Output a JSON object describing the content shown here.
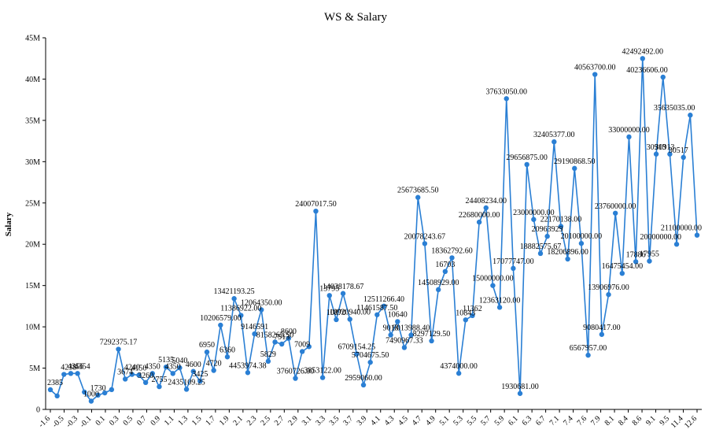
{
  "chart_data": {
    "type": "line",
    "title": "WS & Salary",
    "xlabel": "",
    "ylabel": "Salary",
    "ylim": [
      0,
      45000000
    ],
    "y_ticks": [
      "0",
      "5M",
      "10M",
      "15M",
      "20M",
      "25M",
      "30M",
      "35M",
      "40M",
      "45M"
    ],
    "grid": false,
    "legend": "none",
    "line_color": "#2A7FD4",
    "marker_color": "#2A7FD4",
    "x_ticks": [
      "-1.6",
      "-0.5",
      "-0.3",
      "-0.1",
      "0.1",
      "0.3",
      "0.5",
      "0.7",
      "0.9",
      "1.1",
      "1.3",
      "1.5",
      "1.7",
      "1.9",
      "2.1",
      "2.3",
      "2.5",
      "2.7",
      "2.9",
      "3.1",
      "3.3",
      "3.5",
      "3.7",
      "3.9",
      "4.1",
      "4.3",
      "4.5",
      "4.7",
      "4.9",
      "5.1",
      "5.3",
      "5.5",
      "5.7",
      "5.9",
      "6.1",
      "6.3",
      "6.7",
      "7.1",
      "7.4",
      "7.6",
      "7.9",
      "8.1",
      "8.4",
      "8.6",
      "9.1",
      "9.5",
      "11.4",
      "12.6"
    ],
    "x": [
      "-1.6",
      "-0.9",
      "-0.5",
      "-0.4",
      "-0.3",
      "-0.2",
      "-0.1",
      "0.0",
      "0.1",
      "0.2",
      "0.3",
      "0.4",
      "0.5",
      "0.6",
      "0.7",
      "0.8",
      "0.9",
      "1.0",
      "1.1",
      "1.2",
      "1.3",
      "1.4",
      "1.5",
      "1.6",
      "1.7",
      "1.8",
      "1.9",
      "2.0",
      "2.1",
      "2.2",
      "2.3",
      "2.4",
      "2.5",
      "2.6",
      "2.7",
      "2.8",
      "2.9",
      "3.0",
      "3.1",
      "3.2",
      "3.3",
      "3.4",
      "3.5",
      "3.6",
      "3.7",
      "3.8",
      "3.9",
      "4.0",
      "4.1",
      "4.2",
      "4.3",
      "4.4",
      "4.5",
      "4.6",
      "4.7",
      "4.8",
      "4.9",
      "5.0",
      "5.1",
      "5.2",
      "5.3",
      "5.4",
      "5.5",
      "5.6",
      "5.7",
      "5.8",
      "5.9",
      "6.0",
      "6.1",
      "6.2",
      "6.3",
      "6.5",
      "6.7",
      "6.9",
      "7.1",
      "7.2",
      "7.4",
      "7.5",
      "7.6",
      "7.7",
      "7.9",
      "8.0",
      "8.1",
      "8.2",
      "8.4",
      "8.5",
      "8.6",
      "8.9",
      "9.1",
      "9.3",
      "9.5",
      "10.0",
      "11.4",
      "12.0",
      "12.6",
      "13.0"
    ],
    "values": [
      2385,
      1635,
      4238,
      4356,
      4354,
      2100,
      1000,
      1730,
      2000,
      2400,
      7292,
      3674,
      4240,
      4150,
      3260,
      4350,
      2755,
      5135,
      4350,
      5040,
      2435,
      4600,
      3425,
      6950,
      4720,
      10206,
      6360,
      13421,
      11386,
      4453,
      9146,
      12064,
      5829,
      8158,
      7913,
      8600,
      3760,
      7009,
      7600,
      24007,
      3853,
      13795,
      10870,
      14038,
      10920,
      6709,
      2959,
      5704,
      11461,
      12511,
      9013,
      10640,
      7490,
      9013,
      25673,
      20078,
      8297,
      14508,
      16703,
      18362,
      4374,
      10843,
      11362,
      22680,
      24408,
      15000,
      12363,
      37633,
      17077,
      1930,
      29656,
      23000,
      18882,
      20963,
      32405,
      22170,
      18206,
      29190,
      20100,
      6567,
      40563,
      9080,
      13906,
      23760,
      16475,
      33000,
      17886,
      42492,
      17955,
      30913,
      40236,
      30913,
      20000,
      30517,
      35635,
      21100
    ],
    "value_scale": 1000,
    "point_labels": [
      "2385",
      "1635",
      "4238",
      "4356",
      "4354",
      "2100",
      "1000",
      "1730",
      "2000",
      "2400",
      "7292375.17",
      "3674",
      "4240",
      "4150",
      "3260",
      "4350",
      "2755",
      "5135",
      "4350",
      "5040",
      "2435109.25",
      "4600",
      "3425",
      "6950",
      "4720",
      "10206579.00",
      "6360",
      "13421193.25",
      "11386922.00",
      "4453974.38",
      "9146591",
      "12064350.00",
      "5829",
      "8158265.50",
      "7913",
      "8600",
      "3760726.00",
      "7009",
      "7600",
      "24007017.50",
      "3853122.00",
      "13795",
      "10870",
      "14038178.67",
      "10920940.00",
      "6709154.25",
      "2959060.00",
      "5704675.50",
      "11461587.50",
      "12511266.40",
      "9013",
      "10640",
      "7490967.33",
      "9013988.40",
      "25673685.50",
      "20078243.67",
      "8297129.50",
      "14508929.00",
      "16703",
      "18362792.60",
      "4374000.00",
      "10843",
      "11362",
      "22680000.00",
      "24408234.00",
      "15000000.00",
      "12363120.00",
      "37633050.00",
      "17077747.00",
      "1930681.00",
      "29656875.00",
      "23000000.00",
      "18882575.67",
      "20963929",
      "32405377.00",
      "22170138.00",
      "18206896.00",
      "29190868.50",
      "20100000.00",
      "6567957.00",
      "40563700.00",
      "9080417.00",
      "13906976.00",
      "23760000.00",
      "16475454.00",
      "33000000.00",
      "17886",
      "42492492.00",
      "17955",
      "30913",
      "40236606.00",
      "30913",
      "20000000.00",
      "30517",
      "35635035.00",
      "21100000.00"
    ],
    "visible_labels": [
      0,
      2,
      3,
      4,
      6,
      7,
      10,
      11,
      12,
      13,
      14,
      15,
      16,
      17,
      18,
      19,
      20,
      21,
      22,
      23,
      24,
      25,
      26,
      27,
      28,
      29,
      30,
      31,
      32,
      33,
      34,
      35,
      36,
      37,
      39,
      40,
      41,
      42,
      43,
      44,
      45,
      46,
      47,
      48,
      49,
      50,
      51,
      52,
      53,
      54,
      55,
      56,
      57,
      58,
      59,
      60,
      61,
      62,
      63,
      64,
      65,
      66,
      67,
      68,
      69,
      70,
      71,
      72,
      73,
      74,
      75,
      76,
      77,
      78,
      79,
      80,
      81,
      82,
      83,
      84,
      85,
      86,
      87,
      88,
      89,
      90,
      91,
      92,
      93,
      94,
      95
    ]
  }
}
